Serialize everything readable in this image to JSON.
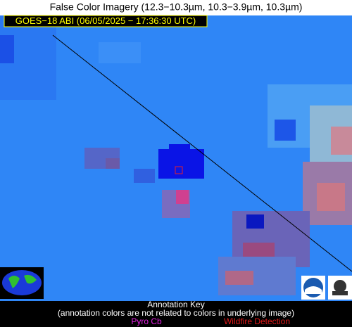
{
  "header": {
    "title": "False Color Imagery (12.3−10.3µm, 10.3−3.9µm, 10.3µm)"
  },
  "image": {
    "label": "GOES−18 ABI (06/05/2025 − 17:36:30 UTC)"
  },
  "key": {
    "title": "Annotation Key",
    "note": "(annotation colors are not related to colors in underlying image)",
    "items": [
      "Pyro Cb",
      "Wildfire Detection"
    ]
  }
}
